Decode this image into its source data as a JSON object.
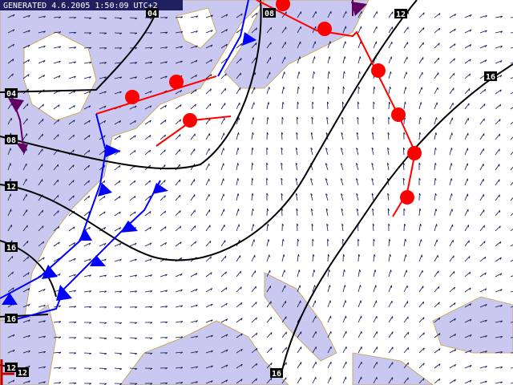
{
  "header": {
    "generated": "GENERATED 4.6.2005 1:50:09 UTC+2"
  },
  "isobar_labels": [
    "04",
    "08",
    "12",
    "16",
    "04",
    "08",
    "12",
    "16",
    "16",
    "16",
    "12",
    "12"
  ]
}
